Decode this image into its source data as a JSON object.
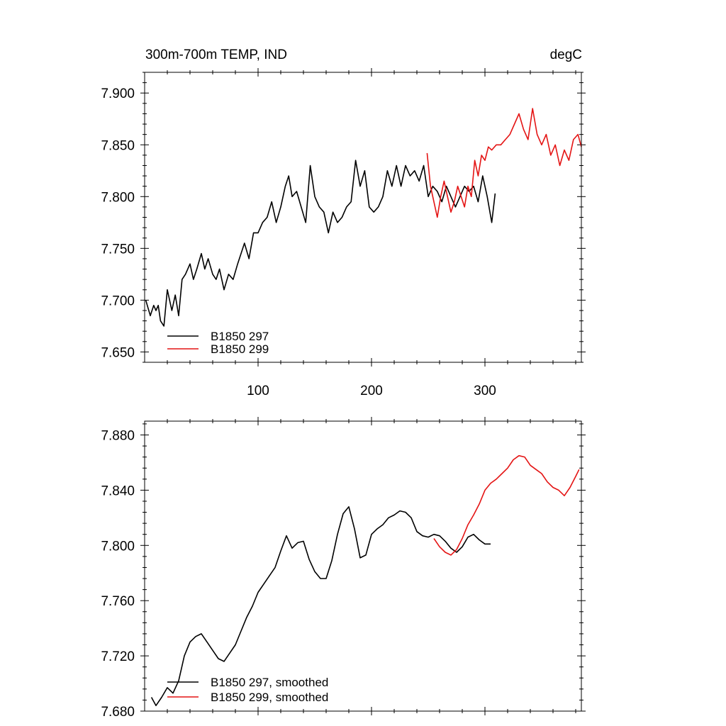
{
  "chart_data": [
    {
      "type": "line",
      "title_left": "300m-700m TEMP, IND",
      "title_right": "degC",
      "xlim": [
        0,
        385
      ],
      "ylim": [
        7.64,
        7.92
      ],
      "x_ticks": [
        100,
        200,
        300
      ],
      "x_tick_labels": [
        "100",
        "200",
        "300"
      ],
      "y_ticks": [
        7.65,
        7.7,
        7.75,
        7.8,
        7.85,
        7.9
      ],
      "y_tick_labels": [
        "7.650",
        "7.700",
        "7.750",
        "7.800",
        "7.850",
        "7.900"
      ],
      "legend_position": "bottom-left",
      "series": [
        {
          "name": "B1850 297",
          "color": "#000000",
          "x": [
            1,
            5,
            8,
            10,
            12,
            14,
            17,
            20,
            24,
            27,
            30,
            33,
            36,
            40,
            43,
            46,
            50,
            53,
            56,
            60,
            63,
            66,
            70,
            74,
            78,
            82,
            85,
            88,
            92,
            96,
            100,
            104,
            108,
            112,
            116,
            120,
            124,
            127,
            130,
            134,
            138,
            142,
            146,
            150,
            154,
            158,
            162,
            166,
            170,
            174,
            178,
            182,
            186,
            190,
            194,
            198,
            202,
            206,
            210,
            214,
            218,
            222,
            226,
            230,
            234,
            238,
            242,
            246,
            250,
            254,
            258,
            262,
            266,
            270,
            274,
            278,
            282,
            286,
            290,
            294,
            298,
            302,
            306,
            309
          ],
          "y": [
            7.7,
            7.685,
            7.695,
            7.69,
            7.695,
            7.68,
            7.675,
            7.71,
            7.69,
            7.705,
            7.685,
            7.72,
            7.725,
            7.735,
            7.72,
            7.73,
            7.745,
            7.73,
            7.74,
            7.725,
            7.72,
            7.73,
            7.71,
            7.725,
            7.72,
            7.735,
            7.745,
            7.755,
            7.74,
            7.765,
            7.765,
            7.775,
            7.78,
            7.795,
            7.775,
            7.79,
            7.81,
            7.82,
            7.8,
            7.805,
            7.79,
            7.775,
            7.83,
            7.8,
            7.79,
            7.785,
            7.765,
            7.785,
            7.775,
            7.78,
            7.79,
            7.795,
            7.835,
            7.81,
            7.825,
            7.79,
            7.785,
            7.79,
            7.8,
            7.825,
            7.81,
            7.83,
            7.81,
            7.83,
            7.82,
            7.825,
            7.815,
            7.83,
            7.8,
            7.81,
            7.805,
            7.795,
            7.81,
            7.8,
            7.79,
            7.8,
            7.81,
            7.805,
            7.81,
            7.795,
            7.82,
            7.8,
            7.775,
            7.803
          ]
        },
        {
          "name": "B1850 299",
          "color": "#e41414",
          "x": [
            249,
            252,
            255,
            258,
            261,
            264,
            267,
            270,
            273,
            276,
            279,
            282,
            285,
            288,
            291,
            294,
            297,
            300,
            303,
            306,
            310,
            314,
            318,
            322,
            326,
            330,
            334,
            338,
            342,
            346,
            350,
            354,
            358,
            362,
            366,
            370,
            374,
            378,
            382,
            385
          ],
          "y": [
            7.842,
            7.81,
            7.795,
            7.78,
            7.8,
            7.815,
            7.8,
            7.785,
            7.795,
            7.81,
            7.8,
            7.79,
            7.81,
            7.8,
            7.835,
            7.82,
            7.84,
            7.835,
            7.848,
            7.845,
            7.85,
            7.85,
            7.855,
            7.86,
            7.87,
            7.88,
            7.865,
            7.855,
            7.885,
            7.86,
            7.85,
            7.86,
            7.84,
            7.85,
            7.83,
            7.845,
            7.835,
            7.855,
            7.86,
            7.848
          ]
        }
      ]
    },
    {
      "type": "line",
      "xlim": [
        0,
        385
      ],
      "ylim": [
        7.68,
        7.89
      ],
      "x_ticks": [
        100,
        200,
        300
      ],
      "y_ticks": [
        7.68,
        7.72,
        7.76,
        7.8,
        7.84,
        7.88
      ],
      "y_tick_labels": [
        "7.680",
        "7.720",
        "7.760",
        "7.800",
        "7.840",
        "7.880"
      ],
      "legend_position": "bottom-left",
      "series": [
        {
          "name": "B1850 297, smoothed",
          "color": "#000000",
          "x": [
            6,
            10,
            15,
            20,
            25,
            30,
            35,
            40,
            45,
            50,
            55,
            60,
            65,
            70,
            75,
            80,
            85,
            90,
            95,
            100,
            105,
            110,
            115,
            120,
            125,
            130,
            135,
            140,
            145,
            150,
            155,
            160,
            165,
            170,
            175,
            180,
            185,
            190,
            195,
            200,
            205,
            210,
            215,
            220,
            225,
            230,
            235,
            240,
            245,
            250,
            255,
            260,
            265,
            270,
            275,
            280,
            285,
            290,
            295,
            300,
            305
          ],
          "y": [
            7.69,
            7.684,
            7.69,
            7.697,
            7.693,
            7.702,
            7.72,
            7.73,
            7.734,
            7.736,
            7.73,
            7.724,
            7.718,
            7.716,
            7.722,
            7.728,
            7.738,
            7.748,
            7.756,
            7.766,
            7.772,
            7.778,
            7.784,
            7.796,
            7.807,
            7.798,
            7.802,
            7.803,
            7.79,
            7.781,
            7.776,
            7.776,
            7.789,
            7.808,
            7.823,
            7.828,
            7.812,
            7.791,
            7.793,
            7.808,
            7.812,
            7.815,
            7.82,
            7.822,
            7.825,
            7.824,
            7.82,
            7.81,
            7.807,
            7.806,
            7.808,
            7.807,
            7.803,
            7.798,
            7.795,
            7.799,
            7.806,
            7.808,
            7.804,
            7.801,
            7.801
          ]
        },
        {
          "name": "B1850 299, smoothed",
          "color": "#e41414",
          "x": [
            255,
            260,
            265,
            270,
            275,
            280,
            285,
            290,
            295,
            300,
            305,
            310,
            315,
            320,
            325,
            330,
            335,
            340,
            345,
            350,
            355,
            360,
            365,
            370,
            375,
            380,
            383
          ],
          "y": [
            7.805,
            7.799,
            7.795,
            7.793,
            7.797,
            7.805,
            7.815,
            7.822,
            7.83,
            7.84,
            7.845,
            7.848,
            7.852,
            7.856,
            7.862,
            7.865,
            7.864,
            7.858,
            7.855,
            7.852,
            7.846,
            7.842,
            7.84,
            7.836,
            7.842,
            7.85,
            7.855
          ]
        }
      ]
    }
  ]
}
